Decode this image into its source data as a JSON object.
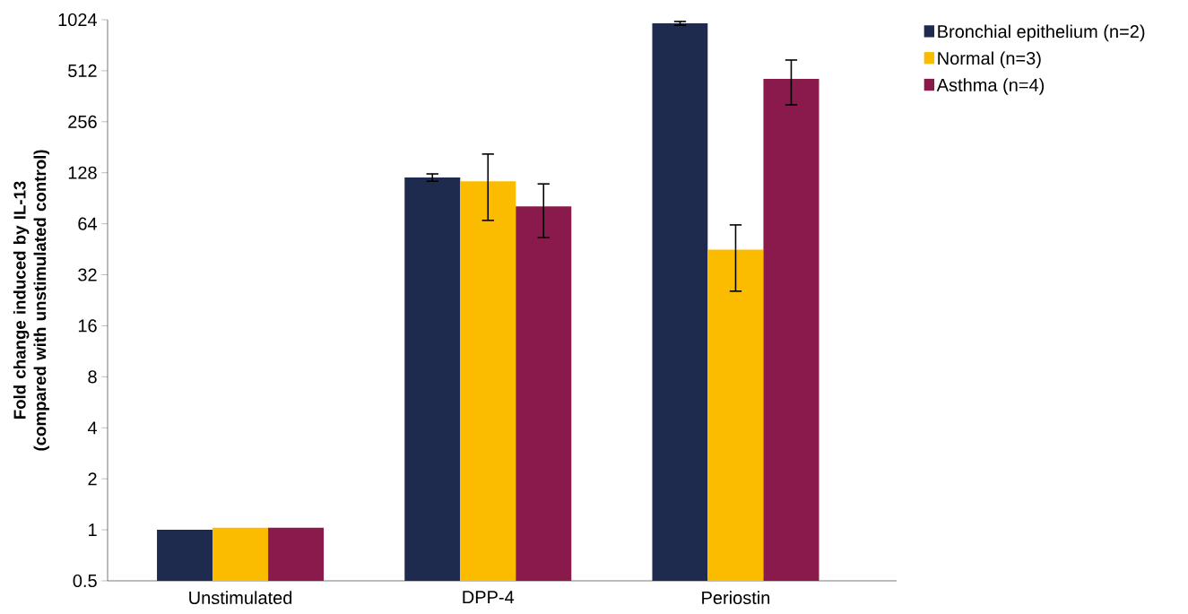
{
  "chart_data": {
    "type": "bar",
    "ylabel": "Fold change induced by IL-13 (compared with unstimulated control)",
    "categories": [
      "Unstimulated",
      "DPP-4",
      "Periostin"
    ],
    "log": "y",
    "ylim": [
      0.5,
      1024
    ],
    "yticks": [
      0.5,
      1,
      2,
      4,
      8,
      16,
      32,
      64,
      128,
      256,
      512,
      1024
    ],
    "legend": "top right",
    "series": [
      {
        "name": "Bronchial epithelium (n=2)",
        "color": "#1f2a4f",
        "values": [
          1,
          120,
          975
        ],
        "errors": [
          null,
          [
            114,
            126
          ],
          [
            950,
            1000
          ]
        ]
      },
      {
        "name": "Normal (n=3)",
        "color": "#fbbc00",
        "values": [
          1.03,
          114,
          45
        ],
        "errors": [
          null,
          [
            67,
            165
          ],
          [
            25.6,
            63
          ]
        ]
      },
      {
        "name": "Asthma (n=4)",
        "color": "#8a1a4b",
        "values": [
          1.03,
          81,
          458
        ],
        "errors": [
          null,
          [
            53,
            110
          ],
          [
            322,
            592
          ]
        ]
      }
    ]
  }
}
